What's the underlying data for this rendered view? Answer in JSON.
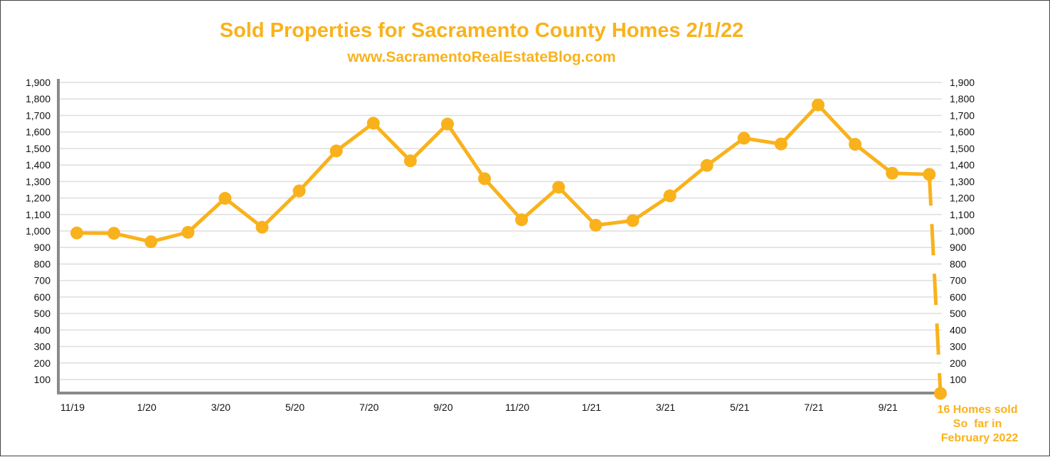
{
  "chart_data": {
    "type": "line",
    "title": "Sold Properties for Sacramento County Homes 2/1/22",
    "subtitle": "www.SacramentoRealEstateBlog.com",
    "color": "#F9B21C",
    "x": [
      "11/19",
      "12/19",
      "1/20",
      "2/20",
      "3/20",
      "4/20",
      "5/20",
      "6/20",
      "7/20",
      "8/20",
      "9/20",
      "10/20",
      "11/20",
      "12/20",
      "1/21",
      "2/21",
      "3/21",
      "4/21",
      "5/21",
      "6/21",
      "7/21",
      "8/21",
      "9/21",
      "10/21",
      "2/22"
    ],
    "xtick_labels": [
      "11/19",
      "1/20",
      "3/20",
      "5/20",
      "7/20",
      "9/20",
      "11/20",
      "1/21",
      "3/21",
      "5/21",
      "7/21",
      "9/21"
    ],
    "values": [
      988,
      986,
      935,
      992,
      1198,
      1023,
      1243,
      1485,
      1653,
      1425,
      1648,
      1317,
      1068,
      1265,
      1035,
      1063,
      1213,
      1397,
      1562,
      1527,
      1764,
      1525,
      1350,
      1343,
      16
    ],
    "projected_from_index": 23,
    "ylim": [
      0,
      1900
    ],
    "yticks": [
      "100",
      "200",
      "300",
      "400",
      "500",
      "600",
      "700",
      "800",
      "900",
      "1,000",
      "1,100",
      "1,200",
      "1,300",
      "1,400",
      "1,500",
      "1,600",
      "1,700",
      "1,800",
      "1,900"
    ],
    "grid": true,
    "annotation": [
      "16 Homes sold",
      "So  far in",
      "February 2022"
    ]
  }
}
